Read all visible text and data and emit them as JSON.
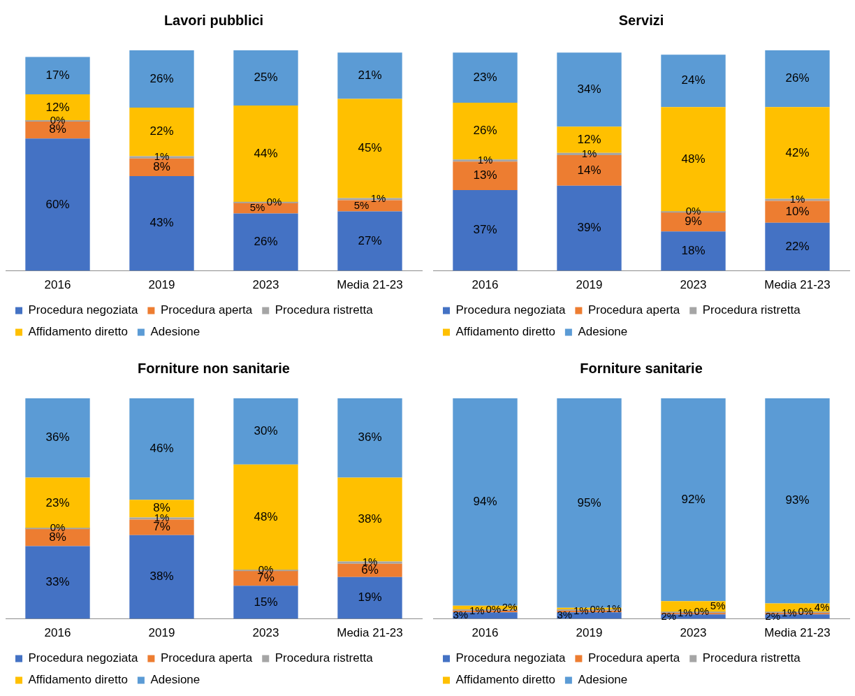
{
  "chart_data": [
    {
      "type": "bar",
      "title": "Lavori pubblici",
      "stacked": true,
      "tick_labels": "x",
      "grid": false,
      "legend": "bottom",
      "categories": [
        "2016",
        "2019",
        "2023",
        "Media 21-23"
      ],
      "series": [
        {
          "name": "Procedura negoziata",
          "color": "#4472c4",
          "values": [
            60,
            43,
            26,
            27
          ],
          "value_labels": [
            "60%",
            "43%",
            "26%",
            "27%"
          ]
        },
        {
          "name": "Procedura aperta",
          "color": "#ed7d31",
          "values": [
            8,
            8,
            5,
            5
          ],
          "value_labels": [
            "8%",
            "8%",
            "5%",
            "5%"
          ]
        },
        {
          "name": "Procedura ristretta",
          "color": "#a5a5a5",
          "values": [
            0,
            1,
            0,
            1
          ],
          "value_labels": [
            "0%",
            "1%",
            "0%",
            "1%"
          ]
        },
        {
          "name": "Affidamento diretto",
          "color": "#ffc000",
          "values": [
            12,
            22,
            44,
            45
          ],
          "value_labels": [
            "12%",
            "22%",
            "44%",
            "45%"
          ]
        },
        {
          "name": "Adesione",
          "color": "#5b9bd5",
          "values": [
            17,
            26,
            25,
            21
          ],
          "value_labels": [
            "17%",
            "26%",
            "25%",
            "21%"
          ]
        }
      ]
    },
    {
      "type": "bar",
      "title": "Servizi",
      "stacked": true,
      "tick_labels": "x",
      "grid": false,
      "legend": "bottom",
      "categories": [
        "2016",
        "2019",
        "2023",
        "Media 21-23"
      ],
      "series": [
        {
          "name": "Procedura negoziata",
          "color": "#4472c4",
          "values": [
            37,
            39,
            18,
            22
          ],
          "value_labels": [
            "37%",
            "39%",
            "18%",
            "22%"
          ]
        },
        {
          "name": "Procedura aperta",
          "color": "#ed7d31",
          "values": [
            13,
            14,
            9,
            10
          ],
          "value_labels": [
            "13%",
            "14%",
            "9%",
            "10%"
          ]
        },
        {
          "name": "Procedura ristretta",
          "color": "#a5a5a5",
          "values": [
            1,
            1,
            0,
            1
          ],
          "value_labels": [
            "1%",
            "1%",
            "0%",
            "1%"
          ]
        },
        {
          "name": "Affidamento diretto",
          "color": "#ffc000",
          "values": [
            26,
            12,
            48,
            42
          ],
          "value_labels": [
            "26%",
            "12%",
            "48%",
            "42%"
          ]
        },
        {
          "name": "Adesione",
          "color": "#5b9bd5",
          "values": [
            23,
            34,
            24,
            26
          ],
          "value_labels": [
            "23%",
            "34%",
            "24%",
            "26%"
          ]
        }
      ]
    },
    {
      "type": "bar",
      "title": "Forniture non sanitarie",
      "stacked": true,
      "tick_labels": "x",
      "grid": false,
      "legend": "bottom",
      "categories": [
        "2016",
        "2019",
        "2023",
        "Media 21-23"
      ],
      "series": [
        {
          "name": "Procedura negoziata",
          "color": "#4472c4",
          "values": [
            33,
            38,
            15,
            19
          ],
          "value_labels": [
            "33%",
            "38%",
            "15%",
            "19%"
          ]
        },
        {
          "name": "Procedura aperta",
          "color": "#ed7d31",
          "values": [
            8,
            7,
            7,
            6
          ],
          "value_labels": [
            "8%",
            "7%",
            "7%",
            "6%"
          ]
        },
        {
          "name": "Procedura ristretta",
          "color": "#a5a5a5",
          "values": [
            0,
            1,
            0,
            1
          ],
          "value_labels": [
            "0%",
            "1%",
            "0%",
            "1%"
          ]
        },
        {
          "name": "Affidamento diretto",
          "color": "#ffc000",
          "values": [
            23,
            8,
            48,
            38
          ],
          "value_labels": [
            "23%",
            "8%",
            "48%",
            "38%"
          ]
        },
        {
          "name": "Adesione",
          "color": "#5b9bd5",
          "values": [
            36,
            46,
            30,
            36
          ],
          "value_labels": [
            "36%",
            "46%",
            "30%",
            "36%"
          ]
        }
      ]
    },
    {
      "type": "bar",
      "title": "Forniture sanitarie",
      "stacked": true,
      "tick_labels": "x",
      "grid": false,
      "legend": "bottom",
      "categories": [
        "2016",
        "2019",
        "2023",
        "Media 21-23"
      ],
      "series": [
        {
          "name": "Procedura negoziata",
          "color": "#4472c4",
          "values": [
            3,
            3,
            2,
            2
          ],
          "value_labels": [
            "3%",
            "3%",
            "2%",
            "2%"
          ]
        },
        {
          "name": "Procedura aperta",
          "color": "#ed7d31",
          "values": [
            1,
            1,
            1,
            1
          ],
          "value_labels": [
            "1%",
            "1%",
            "1%",
            "1%"
          ]
        },
        {
          "name": "Procedura ristretta",
          "color": "#a5a5a5",
          "values": [
            0,
            0,
            0,
            0
          ],
          "value_labels": [
            "0%",
            "0%",
            "0%",
            "0%"
          ]
        },
        {
          "name": "Affidamento diretto",
          "color": "#ffc000",
          "values": [
            2,
            1,
            5,
            4
          ],
          "value_labels": [
            "2%",
            "1%",
            "5%",
            "4%"
          ]
        },
        {
          "name": "Adesione",
          "color": "#5b9bd5",
          "values": [
            94,
            95,
            92,
            93
          ],
          "value_labels": [
            "94%",
            "95%",
            "92%",
            "93%"
          ]
        }
      ]
    }
  ]
}
